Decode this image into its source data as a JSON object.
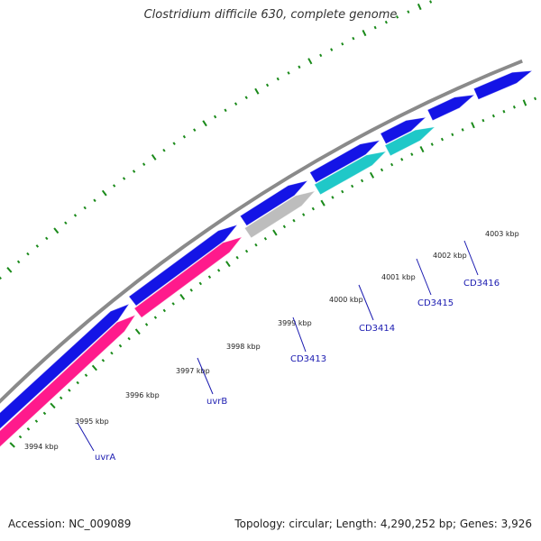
{
  "title": "Clostridium difficile 630, complete genome",
  "footer": {
    "accession": "Accession: NC_009089",
    "summary": "Topology: circular; Length: 4,290,252 bp; Genes: 3,926"
  },
  "colors": {
    "backbone": "#8a8a8a",
    "forward_gene": "#1414e6",
    "forward_gene_edge": "#6a6ad8",
    "rna_gene": "#ff1a8c",
    "rna_gene_edge": "#ff8cc6",
    "pseudo_gene": "#bdbdbd",
    "cyan_gene": "#1fc8c8",
    "tick": "#1a8a1a",
    "label_line": "#1a1ab0",
    "label_text": "#1a1ab0"
  },
  "position_ticks": [
    {
      "label": "3994 kbp",
      "kbp": 3994
    },
    {
      "label": "3995 kbp",
      "kbp": 3995
    },
    {
      "label": "3996 kbp",
      "kbp": 3996
    },
    {
      "label": "3997 kbp",
      "kbp": 3997
    },
    {
      "label": "3998 kbp",
      "kbp": 3998
    },
    {
      "label": "3999 kbp",
      "kbp": 3999
    },
    {
      "label": "4000 kbp",
      "kbp": 4000
    },
    {
      "label": "4001 kbp",
      "kbp": 4001
    },
    {
      "label": "4002 kbp",
      "kbp": 4002
    },
    {
      "label": "4003 kbp",
      "kbp": 4003
    }
  ],
  "gene_labels": [
    {
      "label": "uvrA"
    },
    {
      "label": "uvrB"
    },
    {
      "label": "CD3413"
    },
    {
      "label": "CD3414"
    },
    {
      "label": "CD3415"
    },
    {
      "label": "CD3416"
    }
  ]
}
